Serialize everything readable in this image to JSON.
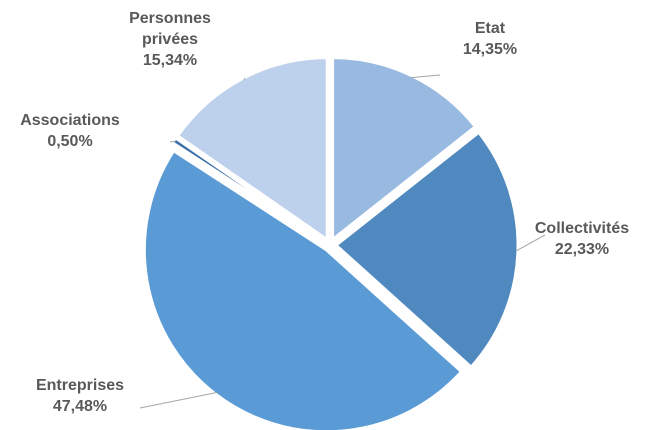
{
  "chart_data": {
    "type": "pie",
    "categories": [
      "Etat",
      "Collectivités",
      "Entreprises",
      "Associations",
      "Personnes privées"
    ],
    "values": [
      14.35,
      22.33,
      47.48,
      0.5,
      15.34
    ],
    "value_labels": [
      "14,35%",
      "22,33%",
      "47,48%",
      "0,50%",
      "15,34%"
    ],
    "colors": [
      "#98b9e0",
      "#4f89c0",
      "#5b9bd5",
      "#3a6fa8",
      "#bdd1ec"
    ]
  }
}
